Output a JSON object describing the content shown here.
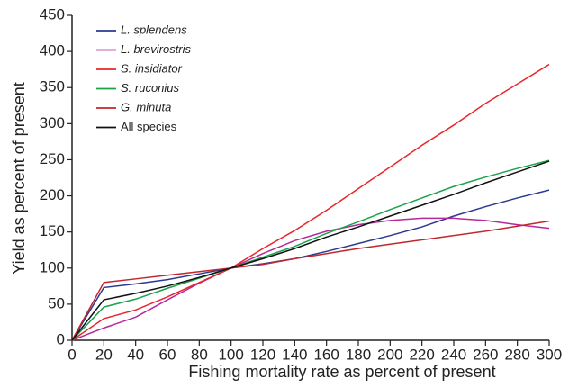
{
  "chart_data": {
    "type": "line",
    "xlabel": "Fishing mortality rate as percent of present",
    "ylabel": "Yield as percent of present",
    "x": [
      0,
      20,
      40,
      60,
      80,
      100,
      120,
      140,
      160,
      180,
      200,
      220,
      240,
      260,
      280,
      300
    ],
    "xlim": [
      0,
      300
    ],
    "xticks": [
      0,
      20,
      40,
      60,
      80,
      100,
      120,
      140,
      160,
      180,
      200,
      220,
      240,
      260,
      280,
      300
    ],
    "ylim": [
      0,
      450
    ],
    "yticks": [
      0,
      50,
      100,
      150,
      200,
      250,
      300,
      350,
      400,
      450
    ],
    "grid": false,
    "legend": "upper-left",
    "series": [
      {
        "name": "L. splendens",
        "color": "#2b3990",
        "font_style": "italic",
        "values": [
          0,
          73,
          78,
          84,
          92,
          100,
          106,
          113,
          123,
          134,
          145,
          157,
          172,
          185,
          197,
          208
        ]
      },
      {
        "name": "L. brevirostris",
        "color": "#b5299b",
        "font_style": "italic",
        "values": [
          0,
          17,
          32,
          56,
          79,
          100,
          120,
          138,
          151,
          160,
          166,
          169,
          169,
          166,
          160,
          155
        ]
      },
      {
        "name": "S. insidiator",
        "color": "#e8262b",
        "font_style": "italic",
        "values": [
          0,
          30,
          42,
          60,
          80,
          100,
          127,
          152,
          180,
          210,
          240,
          270,
          298,
          328,
          355,
          382
        ]
      },
      {
        "name": "S. ruconius",
        "color": "#1aa34a",
        "font_style": "italic",
        "values": [
          0,
          46,
          57,
          72,
          86,
          100,
          115,
          130,
          148,
          164,
          181,
          197,
          213,
          226,
          238,
          249
        ]
      },
      {
        "name": "G. minuta",
        "color": "#c1272d",
        "font_style": "italic",
        "values": [
          0,
          80,
          85,
          90,
          95,
          100,
          105,
          113,
          120,
          127,
          133,
          139,
          145,
          151,
          158,
          165
        ]
      },
      {
        "name": "All species",
        "color": "#111111",
        "font_style": "normal",
        "values": [
          0,
          56,
          65,
          75,
          87,
          100,
          113,
          127,
          143,
          157,
          172,
          187,
          202,
          218,
          233,
          248
        ]
      }
    ]
  }
}
